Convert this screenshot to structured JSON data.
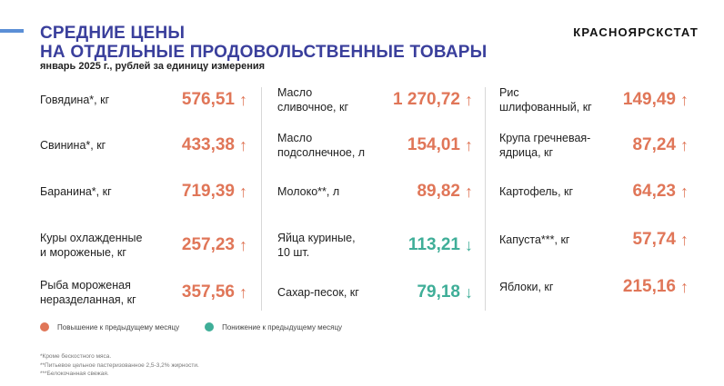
{
  "header": {
    "title_line1": "СРЕДНИЕ ЦЕНЫ",
    "title_line2": "НА ОТДЕЛЬНЫЕ ПРОДОВОЛЬСТВЕННЫЕ ТОВАРЫ",
    "subtitle": "январь 2025 г., рублей за единицу измерения",
    "brand": "КРАСНОЯРСКСТАТ"
  },
  "colors": {
    "up": "#e07658",
    "down": "#3fae98",
    "title": "#3a3f9c",
    "accent": "#5b8fd6"
  },
  "columns": [
    [
      {
        "name_l1": "Говядина*, кг",
        "name_l2": "",
        "value": "576,51",
        "trend": "up",
        "arrow": "↑"
      },
      {
        "name_l1": "Свинина*, кг",
        "name_l2": "",
        "value": "433,38",
        "trend": "up",
        "arrow": "↑"
      },
      {
        "name_l1": "Баранина*, кг",
        "name_l2": "",
        "value": "719,39",
        "trend": "up",
        "arrow": "↑"
      },
      {
        "name_l1": "Куры охлажденные",
        "name_l2": "и мороженые, кг",
        "value": "257,23",
        "trend": "up",
        "arrow": "↑"
      },
      {
        "name_l1": "Рыба мороженая",
        "name_l2": "неразделанная, кг",
        "value": "357,56",
        "trend": "up",
        "arrow": "↑"
      }
    ],
    [
      {
        "name_l1": "Масло",
        "name_l2": "сливочное, кг",
        "value": "1 270,72",
        "trend": "up",
        "arrow": "↑"
      },
      {
        "name_l1": "Масло",
        "name_l2": "подсолнечное, л",
        "value": "154,01",
        "trend": "up",
        "arrow": "↑"
      },
      {
        "name_l1": "Молоко**, л",
        "name_l2": "",
        "value": "89,82",
        "trend": "up",
        "arrow": "↑"
      },
      {
        "name_l1": "Яйца куриные,",
        "name_l2": "10 шт.",
        "value": "113,21",
        "trend": "down",
        "arrow": "↓"
      },
      {
        "name_l1": "Сахар-песок, кг",
        "name_l2": "",
        "value": "79,18",
        "trend": "down",
        "arrow": "↓"
      }
    ],
    [
      {
        "name_l1": "Рис",
        "name_l2": "шлифованный, кг",
        "value": "149,49",
        "trend": "up",
        "arrow": "↑"
      },
      {
        "name_l1": "Крупа гречневая-",
        "name_l2": "ядрица, кг",
        "value": "87,24",
        "trend": "up",
        "arrow": "↑"
      },
      {
        "name_l1": "Картофель, кг",
        "name_l2": "",
        "value": "64,23",
        "trend": "up",
        "arrow": "↑"
      },
      {
        "name_l1": "Капуста***, кг",
        "name_l2": "",
        "value": "57,74",
        "trend": "up",
        "arrow": "↑"
      },
      {
        "name_l1": "Яблоки, кг",
        "name_l2": "",
        "value": "215,16",
        "trend": "up",
        "arrow": "↑"
      }
    ]
  ],
  "legend": {
    "up": "Повышение к предыдущему месяцу",
    "down": "Понижение к предыдущему месяцу"
  },
  "footnotes": [
    "*Кроме бескостного мяса.",
    "**Питьевое цельное пастеризованное 2,5-3,2% жирности.",
    "***Белокочанная свежая."
  ]
}
